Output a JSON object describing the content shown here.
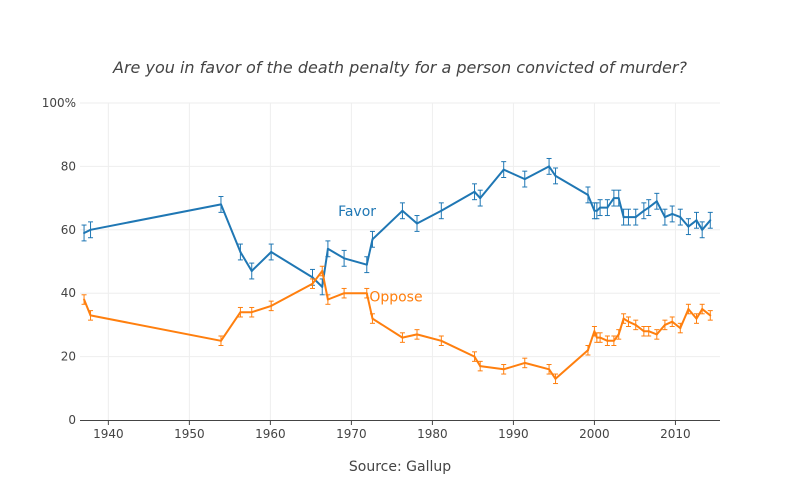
{
  "chart_data": {
    "type": "line",
    "title": "Are you in favor of the death penalty for a person convicted of murder?",
    "xlabel": "Source: Gallup",
    "ylabel": "",
    "xlim": [
      1936.5,
      2015.5
    ],
    "ylim": [
      0,
      100
    ],
    "x_ticks": [
      1940,
      1950,
      1960,
      1970,
      1980,
      1990,
      2000,
      2010
    ],
    "y_ticks": [
      0,
      20,
      40,
      60,
      80,
      100
    ],
    "y_tick_labels": [
      "0",
      "20",
      "40",
      "60",
      "80",
      "100%"
    ],
    "colors": {
      "favor": "#1f77b4",
      "oppose": "#ff7f0e",
      "axis": "#444444",
      "grid": "#eeeeee"
    },
    "series": [
      {
        "name": "Favor",
        "color": "#1f77b4",
        "annotation": "Favor",
        "annotation_at": {
          "x": 1970.7,
          "y": 66
        },
        "error": 2.5,
        "x": [
          1937,
          1937.8,
          1953.9,
          1956.3,
          1957.7,
          1960.1,
          1965.2,
          1966.4,
          1967.1,
          1969.1,
          1971.9,
          1972.6,
          1976.3,
          1978.1,
          1981.1,
          1985.2,
          1985.9,
          1988.8,
          1991.4,
          1994.4,
          1995.2,
          1999.2,
          2000.0,
          2000.3,
          2000.7,
          2001.6,
          2002.4,
          2003.0,
          2003.6,
          2004.2,
          2005.1,
          2006.1,
          2006.7,
          2007.7,
          2008.7,
          2009.6,
          2010.6,
          2011.6,
          2012.6,
          2013.3,
          2014.3
        ],
        "y": [
          59,
          60,
          68,
          53,
          47,
          53,
          45,
          42,
          54,
          51,
          49,
          57,
          66,
          62,
          66,
          72,
          70,
          79,
          76,
          80,
          77,
          71,
          66,
          66,
          67,
          67,
          70,
          70,
          64,
          64,
          64,
          66,
          67,
          69,
          64,
          65,
          64,
          61,
          63,
          60,
          63
        ]
      },
      {
        "name": "Oppose",
        "color": "#ff7f0e",
        "annotation": "Oppose",
        "annotation_at": {
          "x": 1975.5,
          "y": 39
        },
        "error": 1.5,
        "x": [
          1937,
          1937.8,
          1953.9,
          1956.3,
          1957.7,
          1960.1,
          1965.2,
          1966.4,
          1967.1,
          1969.1,
          1971.9,
          1972.6,
          1976.3,
          1978.1,
          1981.1,
          1985.2,
          1985.9,
          1988.8,
          1991.4,
          1994.4,
          1995.2,
          1999.2,
          2000.0,
          2000.3,
          2000.7,
          2001.6,
          2002.4,
          2003.0,
          2003.6,
          2004.2,
          2005.1,
          2006.1,
          2006.7,
          2007.7,
          2008.7,
          2009.6,
          2010.6,
          2011.6,
          2012.6,
          2013.3,
          2014.3
        ],
        "y": [
          38,
          33,
          25,
          34,
          34,
          36,
          43,
          47,
          38,
          40,
          40,
          32,
          26,
          27,
          25,
          20,
          17,
          16,
          18,
          16,
          13,
          22,
          28,
          26,
          26,
          25,
          25,
          27,
          32,
          31,
          30,
          28,
          28,
          27,
          30,
          31,
          29,
          35,
          32,
          35,
          33
        ]
      }
    ]
  }
}
